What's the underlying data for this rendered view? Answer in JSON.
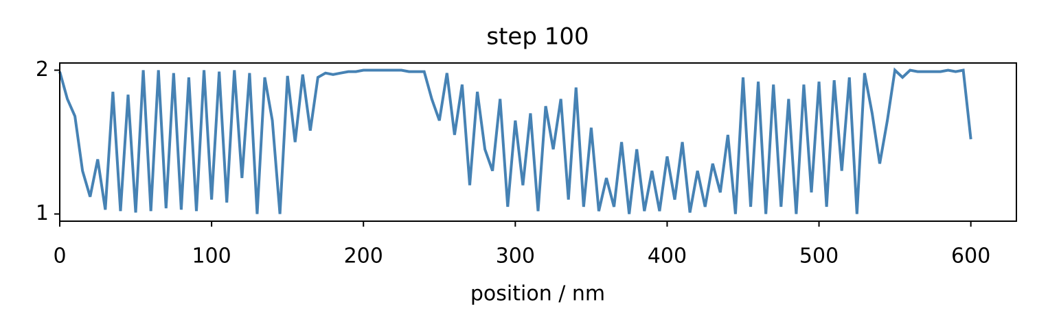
{
  "chart_data": {
    "type": "line",
    "title": "step 100",
    "x_label": "position / nm",
    "x": [
      0,
      5,
      10,
      15,
      20,
      25,
      30,
      35,
      40,
      45,
      50,
      55,
      60,
      65,
      70,
      75,
      80,
      85,
      90,
      95,
      100,
      105,
      110,
      115,
      120,
      125,
      130,
      135,
      140,
      145,
      150,
      155,
      160,
      165,
      170,
      175,
      180,
      185,
      190,
      195,
      200,
      205,
      210,
      215,
      220,
      225,
      230,
      235,
      240,
      245,
      250,
      255,
      260,
      265,
      270,
      275,
      280,
      285,
      290,
      295,
      300,
      305,
      310,
      315,
      320,
      325,
      330,
      335,
      340,
      345,
      350,
      355,
      360,
      365,
      370,
      375,
      380,
      385,
      390,
      395,
      400,
      405,
      410,
      415,
      420,
      425,
      430,
      435,
      440,
      445,
      450,
      455,
      460,
      465,
      470,
      475,
      480,
      485,
      490,
      495,
      500,
      505,
      510,
      515,
      520,
      525,
      530,
      535,
      540,
      545,
      550,
      555,
      560,
      565,
      570,
      575,
      580,
      585,
      590,
      595,
      600
    ],
    "series": [
      {
        "name": "step 100",
        "color": "#4682b4",
        "values": [
          1.99,
          1.8,
          1.68,
          1.3,
          1.12,
          1.38,
          1.03,
          1.85,
          1.02,
          1.83,
          1.01,
          2.0,
          1.02,
          2.0,
          1.04,
          1.98,
          1.03,
          1.95,
          1.02,
          2.0,
          1.1,
          1.99,
          1.08,
          2.0,
          1.25,
          1.98,
          1.0,
          1.95,
          1.65,
          1.0,
          1.96,
          1.5,
          1.97,
          1.58,
          1.95,
          1.98,
          1.97,
          1.98,
          1.99,
          1.99,
          2.0,
          2.0,
          2.0,
          2.0,
          2.0,
          2.0,
          1.99,
          1.99,
          1.99,
          1.8,
          1.65,
          1.98,
          1.55,
          1.9,
          1.2,
          1.85,
          1.45,
          1.3,
          1.8,
          1.05,
          1.65,
          1.2,
          1.7,
          1.02,
          1.75,
          1.45,
          1.8,
          1.1,
          1.88,
          1.05,
          1.6,
          1.02,
          1.25,
          1.05,
          1.5,
          1.0,
          1.45,
          1.02,
          1.3,
          1.02,
          1.4,
          1.1,
          1.5,
          1.01,
          1.3,
          1.05,
          1.35,
          1.15,
          1.55,
          1.0,
          1.95,
          1.05,
          1.92,
          1.0,
          1.9,
          1.05,
          1.8,
          1.0,
          1.9,
          1.15,
          1.92,
          1.05,
          1.93,
          1.3,
          1.95,
          1.0,
          1.98,
          1.7,
          1.35,
          1.65,
          2.0,
          1.95,
          2.0,
          1.99,
          1.99,
          1.99,
          1.99,
          2.0,
          1.99,
          2.0,
          1.52
        ]
      }
    ],
    "xlim": [
      0,
      630
    ],
    "ylim": [
      0.95,
      2.05
    ],
    "xticks": [
      0,
      100,
      200,
      300,
      400,
      500,
      600
    ],
    "yticks": [
      1,
      2
    ]
  }
}
